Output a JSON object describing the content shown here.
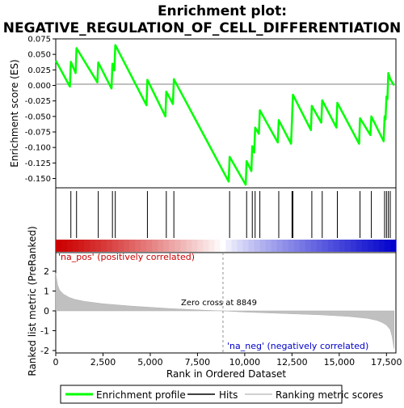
{
  "title": "Enrichment plot: NEGATIVE_REGULATION_OF_CELL_DIFFERENTIATION",
  "top_panel": {
    "ylabel": "Enrichment score (ES)",
    "ylim": [
      -0.165,
      0.075
    ],
    "yticks": [
      "0.075",
      "0.050",
      "0.025",
      "0.000",
      "-0.025",
      "-0.050",
      "-0.075",
      "-0.100",
      "-0.125",
      "-0.150"
    ],
    "line_color": "#00ff00"
  },
  "bottom_panel": {
    "ylabel": "Ranked list metric (PreRanked)",
    "xlabel": "Rank in Ordered Dataset",
    "yticks": [
      "2",
      "1",
      "0",
      "-1",
      "-2"
    ],
    "xticks": [
      "0",
      "2,500",
      "5,000",
      "7,500",
      "10,000",
      "12,500",
      "15,000",
      "17,500"
    ],
    "zero_cross_label": "Zero cross at 8849",
    "pos_label": "'na_pos' (positively correlated)",
    "neg_label": "'na_neg' (negatively correlated)",
    "pos_color": "#cc0000",
    "neg_color": "#0000cc"
  },
  "legend": {
    "items": [
      {
        "label": "Enrichment profile",
        "color": "#00ff00"
      },
      {
        "label": "Hits",
        "color": "#000000"
      },
      {
        "label": "Ranking metric scores",
        "color": "#c0c0c0"
      }
    ]
  },
  "chart_data": {
    "type": "line",
    "x_range": [
      0,
      18000
    ],
    "zero_cross": 8849,
    "hits": [
      800,
      1100,
      2250,
      3000,
      3150,
      4850,
      5850,
      6250,
      9200,
      10100,
      10400,
      10550,
      10800,
      11800,
      12500,
      12550,
      13550,
      14100,
      14900,
      16100,
      16700,
      17400,
      17500,
      17600,
      17700
    ],
    "es_profile": {
      "x": [
        0,
        750,
        800,
        1050,
        1100,
        2200,
        2250,
        2950,
        3000,
        3100,
        3150,
        4800,
        4850,
        5800,
        5850,
        6200,
        6250,
        9150,
        9200,
        10050,
        10100,
        10350,
        10400,
        10500,
        10550,
        10750,
        10800,
        11750,
        11800,
        12450,
        12500,
        12550,
        13500,
        13550,
        14050,
        14100,
        14850,
        14900,
        16050,
        16100,
        16650,
        16700,
        17350,
        17400,
        17450,
        17500,
        17550,
        17600,
        17650,
        17700,
        17900
      ],
      "es": [
        0.04,
        -0.002,
        0.038,
        0.02,
        0.06,
        0.005,
        0.037,
        -0.005,
        0.035,
        0.024,
        0.065,
        -0.032,
        0.009,
        -0.05,
        -0.01,
        -0.03,
        0.01,
        -0.155,
        -0.115,
        -0.16,
        -0.122,
        -0.138,
        -0.098,
        -0.108,
        -0.068,
        -0.078,
        -0.04,
        -0.092,
        -0.056,
        -0.094,
        -0.055,
        -0.015,
        -0.072,
        -0.033,
        -0.06,
        -0.024,
        -0.068,
        -0.028,
        -0.094,
        -0.053,
        -0.08,
        -0.05,
        -0.09,
        -0.05,
        -0.055,
        -0.018,
        -0.022,
        0.02,
        0.015,
        0.01,
        0.0
      ]
    },
    "ranked_metric": {
      "x": [
        0,
        100,
        200,
        400,
        700,
        1000,
        1500,
        2500,
        4000,
        6000,
        8000,
        8849,
        10000,
        12000,
        14000,
        15500,
        16500,
        17000,
        17300,
        17500,
        17700,
        17800,
        17900
      ],
      "y": [
        1.9,
        1.3,
        1.05,
        0.85,
        0.68,
        0.58,
        0.48,
        0.36,
        0.24,
        0.12,
        0.03,
        0.0,
        -0.06,
        -0.13,
        -0.2,
        -0.28,
        -0.38,
        -0.48,
        -0.6,
        -0.72,
        -0.95,
        -1.3,
        -1.9
      ]
    }
  }
}
